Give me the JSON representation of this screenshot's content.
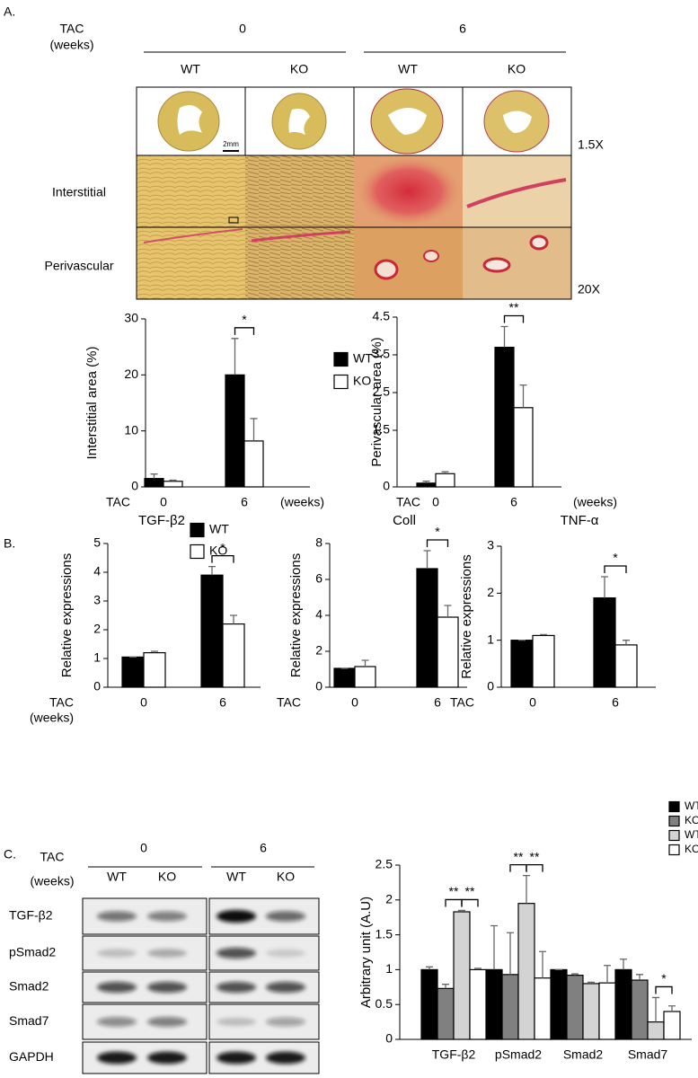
{
  "panel_a": {
    "label": "A.",
    "tac": "TAC",
    "weeks": "(weeks)",
    "groups": [
      "0",
      "6"
    ],
    "genotypes": [
      "WT",
      "KO",
      "WT",
      "KO"
    ],
    "rows": [
      "Interstitial",
      "Perivascular"
    ],
    "magnifications": [
      "1.5X",
      "20X"
    ],
    "scale_bar": "2mm"
  },
  "panel_b": {
    "label": "B."
  },
  "panel_c": {
    "label": "C.",
    "tac": "TAC",
    "weeks": "(weeks)",
    "groups": [
      "0",
      "6"
    ],
    "genotypes": [
      "WT",
      "KO",
      "WT",
      "KO"
    ],
    "blots": [
      "TGF-β2",
      "pSmad2",
      "Smad2",
      "Smad7",
      "GAPDH"
    ]
  },
  "chart_data": [
    {
      "type": "bar",
      "ylabel": "Interstitial area (%)",
      "xlabel_left": [
        "TAC"
      ],
      "xlabel_right": "(weeks)",
      "categories": [
        "0",
        "6"
      ],
      "series": [
        {
          "name": "WT",
          "color": "#000000",
          "values": [
            1.5,
            20
          ],
          "errors": [
            0.8,
            6.5
          ]
        },
        {
          "name": "KO",
          "color": "#ffffff",
          "values": [
            1.0,
            8.2
          ],
          "errors": [
            0.2,
            4
          ]
        }
      ],
      "ylim": [
        0,
        30
      ],
      "yticks": [
        0,
        10,
        20,
        30
      ],
      "legend": true,
      "annotations": [
        {
          "text": "*",
          "category": "6",
          "between": [
            "WT",
            "KO"
          ]
        }
      ]
    },
    {
      "type": "bar",
      "ylabel": "Perivascular area (%)",
      "xlabel_left": [
        "TAC"
      ],
      "xlabel_right": "(weeks)",
      "categories": [
        "0",
        "6"
      ],
      "series": [
        {
          "name": "WT",
          "color": "#000000",
          "values": [
            0.1,
            3.7
          ],
          "errors": [
            0.05,
            0.55
          ]
        },
        {
          "name": "KO",
          "color": "#ffffff",
          "values": [
            0.35,
            2.1
          ],
          "errors": [
            0.05,
            0.6
          ]
        }
      ],
      "ylim": [
        0,
        4.5
      ],
      "yticks": [
        0,
        1.5,
        2.5,
        3.5,
        4.5
      ],
      "legend": false,
      "annotations": [
        {
          "text": "**",
          "category": "6",
          "between": [
            "WT",
            "KO"
          ]
        }
      ]
    },
    {
      "type": "bar",
      "title": "TGF-β2",
      "ylabel": "Relative expressions",
      "xlabel_left": [
        "TAC",
        "(weeks)"
      ],
      "categories": [
        "0",
        "6"
      ],
      "series": [
        {
          "name": "WT",
          "color": "#000000",
          "values": [
            1.05,
            3.9
          ],
          "errors": [
            0,
            0.3
          ]
        },
        {
          "name": "KO",
          "color": "#ffffff",
          "values": [
            1.2,
            2.2
          ],
          "errors": [
            0.05,
            0.3
          ]
        }
      ],
      "ylim": [
        0,
        5
      ],
      "yticks": [
        0,
        1,
        2,
        3,
        4,
        5
      ],
      "legend": true,
      "annotations": [
        {
          "text": "*",
          "category": "6",
          "between": [
            "WT",
            "KO"
          ]
        }
      ]
    },
    {
      "type": "bar",
      "title": "Coll",
      "ylabel": "Relative expressions",
      "xlabel_left": [
        "TAC"
      ],
      "categories": [
        "0",
        "6"
      ],
      "series": [
        {
          "name": "WT",
          "color": "#000000",
          "values": [
            1.05,
            6.6
          ],
          "errors": [
            0,
            1.0
          ]
        },
        {
          "name": "KO",
          "color": "#ffffff",
          "values": [
            1.15,
            3.9
          ],
          "errors": [
            0.35,
            0.65
          ]
        }
      ],
      "ylim": [
        0,
        8
      ],
      "yticks": [
        0,
        2,
        4,
        6,
        8
      ],
      "legend": false,
      "annotations": [
        {
          "text": "*",
          "category": "6",
          "between": [
            "WT",
            "KO"
          ]
        }
      ]
    },
    {
      "type": "bar",
      "title": "TNF-α",
      "ylabel": "Relative expressions",
      "xlabel_left": [
        "TAC"
      ],
      "categories": [
        "0",
        "6"
      ],
      "series": [
        {
          "name": "WT",
          "color": "#000000",
          "values": [
            1.0,
            1.9
          ],
          "errors": [
            0,
            0.45
          ]
        },
        {
          "name": "KO",
          "color": "#ffffff",
          "values": [
            1.1,
            0.9
          ],
          "errors": [
            0.02,
            0.1
          ]
        }
      ],
      "ylim": [
        0,
        3
      ],
      "yticks": [
        0,
        1,
        2,
        3
      ],
      "legend": false,
      "annotations": [
        {
          "text": "*",
          "category": "6",
          "between": [
            "WT",
            "KO"
          ]
        }
      ]
    },
    {
      "type": "bar",
      "ylabel": "Arbitrary unit (A.U)",
      "categories": [
        "TGF-β2",
        "pSmad2",
        "Smad2",
        "Smad7"
      ],
      "series": [
        {
          "name": "WT sham",
          "color": "#000000",
          "values": [
            1.0,
            1.0,
            1.0,
            1.0
          ],
          "errors": [
            0.04,
            0.63,
            0,
            0.15
          ]
        },
        {
          "name": "KO sham",
          "color": "#808080",
          "values": [
            0.73,
            0.93,
            0.92,
            0.85
          ],
          "errors": [
            0.06,
            0.6,
            0.02,
            0.08
          ]
        },
        {
          "name": "WT TAC",
          "color": "#d3d3d3",
          "values": [
            1.83,
            1.95,
            0.8,
            0.25
          ],
          "errors": [
            0.02,
            0.4,
            0.02,
            0.35
          ]
        },
        {
          "name": "KO TAC",
          "color": "#ffffff",
          "values": [
            1.0,
            0.88,
            0.81,
            0.4
          ],
          "errors": [
            0.02,
            0.38,
            0.25,
            0.08
          ]
        }
      ],
      "ylim": [
        0,
        2.5
      ],
      "yticks": [
        0,
        0.5,
        1,
        1.5,
        2,
        2.5
      ],
      "legend": true,
      "annotations": [
        {
          "text": "**",
          "category": "TGF-β2",
          "between": [
            "KO sham",
            "WT TAC"
          ]
        },
        {
          "text": "**",
          "category": "TGF-β2",
          "between": [
            "WT TAC",
            "KO TAC"
          ]
        },
        {
          "text": "**",
          "category": "pSmad2",
          "between": [
            "KO sham",
            "WT TAC"
          ]
        },
        {
          "text": "**",
          "category": "pSmad2",
          "between": [
            "WT TAC",
            "KO TAC"
          ]
        },
        {
          "text": "*",
          "category": "Smad7",
          "between": [
            "WT TAC",
            "KO TAC"
          ]
        }
      ]
    }
  ]
}
